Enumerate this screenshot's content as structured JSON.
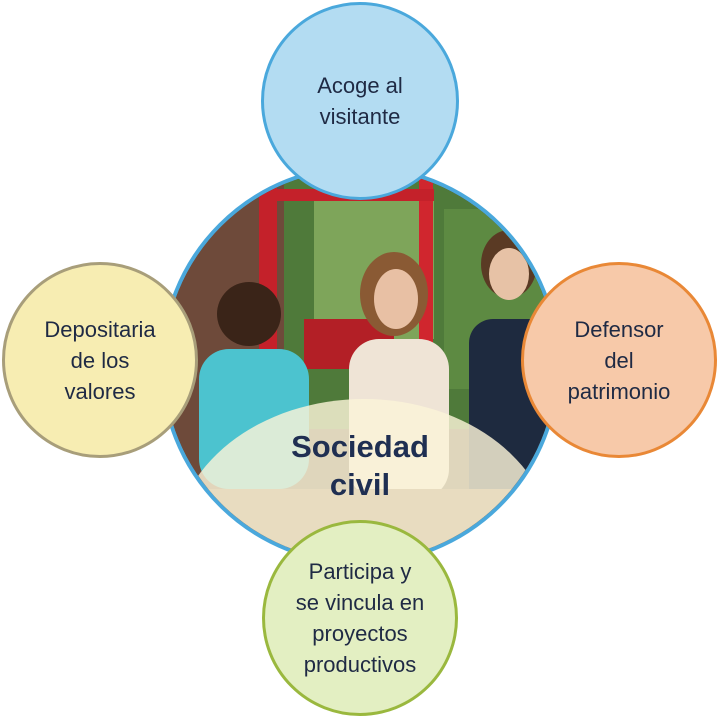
{
  "diagram": {
    "center": {
      "lines": [
        "Sociedad",
        "civil"
      ]
    },
    "nodes": {
      "top": {
        "lines": [
          "Acoge al",
          "visitante"
        ],
        "border_color": "#4aa8dc",
        "fill_color": "#b3dcf2"
      },
      "left": {
        "lines": [
          "Depositaria",
          "de los",
          "valores"
        ],
        "border_color": "#a89e7a",
        "fill_color": "#f7edb2"
      },
      "right": {
        "lines": [
          "Defensor",
          "del",
          "patrimonio"
        ],
        "border_color": "#e98836",
        "fill_color": "#f7c9a9"
      },
      "bottom": {
        "lines": [
          "Participa y",
          "se vincula en",
          "proyectos",
          "productivos"
        ],
        "border_color": "#9ab83e",
        "fill_color": "#e3efc2"
      }
    },
    "center_image": "photo-group-of-people"
  }
}
